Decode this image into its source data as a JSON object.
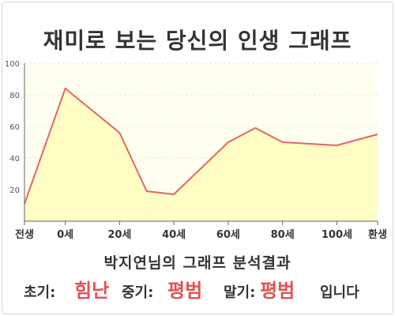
{
  "title": "재미로 보는 당신의 인생 그래프",
  "chart_data": {
    "type": "area",
    "title": "",
    "xlabel": "",
    "ylabel": "",
    "x": [
      -15,
      0,
      20,
      30,
      40,
      60,
      70,
      80,
      100,
      115
    ],
    "y": [
      11,
      84,
      56,
      19,
      17,
      50,
      59,
      50,
      48,
      55
    ],
    "xlim": [
      -15,
      115
    ],
    "ylim": [
      0,
      100
    ],
    "y_ticks": [
      20,
      40,
      60,
      80,
      100
    ],
    "x_ticks": [
      {
        "x": -15,
        "label": "전생"
      },
      {
        "x": 0,
        "label": "0세"
      },
      {
        "x": 20,
        "label": "20세"
      },
      {
        "x": 40,
        "label": "40세"
      },
      {
        "x": 60,
        "label": "60세"
      },
      {
        "x": 80,
        "label": "80세"
      },
      {
        "x": 100,
        "label": "100세"
      },
      {
        "x": 115,
        "label": "환생"
      }
    ],
    "grid": true,
    "colors": {
      "line": "#e06666",
      "fill": "#fffcc4",
      "plot_bg": "#fffff0",
      "grid": "#e8e8d0"
    }
  },
  "result": {
    "title": "박지연님의 그래프 분석결과",
    "early_label": "초기:",
    "early_value": "힘난",
    "middle_label": "중기:",
    "middle_value": "평범",
    "late_label": "말기:",
    "late_value": "평범",
    "ending": "입니다"
  }
}
